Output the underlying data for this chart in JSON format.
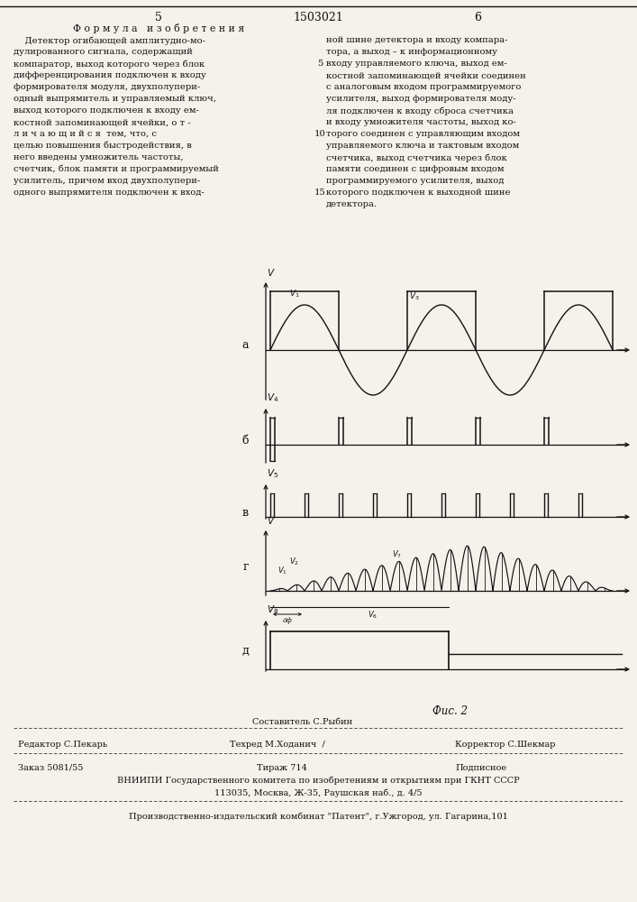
{
  "bg_color": "#f5f2eb",
  "line_color": "#111111",
  "text_color": "#111111",
  "patent_number": "1503021",
  "page_left": "5",
  "page_right": "6",
  "section_title": "Ф о р м у л а   и з о б р е т е н и я",
  "left_lines": [
    "    Детектор огибающей амплитудно-мо-",
    "дулированного сигнала, содержащий",
    "компаратор, выход которого через блок",
    "дифференцирования подключен к входу",
    "формирователя модуля, двухполупери-",
    "одный выпрямитель и управляемый ключ,",
    "выход которого подключен к входу ем-",
    "костной запоминающей ячейки, о т -",
    "л и ч а ю щ и й с я  тем, что, с",
    "целью повышения быстродействия, в",
    "него введены умножитель частоты,",
    "счетчик, блок памяти и программируемый",
    "усилитель, причем вход двухполупери-",
    "одного выпрямителя подключен к вход-"
  ],
  "right_lines": [
    "ной шине детектора и входу компара-",
    "тора, а выход – к информационному",
    "входу управляемого ключа, выход ем-",
    "костной запоминающей ячейки соединен",
    "с аналоговым входом программируемого",
    "усилителя, выход формирователя моду-",
    "ля подключен к входу сброса счетчика",
    "и входу умножителя частоты, выход ко-",
    "торого соединен с управляющим входом",
    "управляемого ключа и тактовым входом",
    "счетчика, выход счетчика через блок",
    "памяти соединен с цифровым входом",
    "программируемого усилителя, выход",
    "которого подключен к выходной шине",
    "детектора."
  ],
  "col_nums": [
    [
      "5",
      2
    ],
    [
      "10",
      8
    ],
    [
      "15",
      13
    ]
  ],
  "fig_label": "Фис. 2",
  "footer": {
    "sostavitel": "Составитель С.Рыбин",
    "redaktor": "Редактор С.Пекарь",
    "tehred": "Техред М.Ходанич  /",
    "korrektor": "Корректор С.Шекмар",
    "zakaz": "Заказ 5081/55",
    "tirazh": "Тираж 714",
    "podpisnoe": "Подписное",
    "vniipи": "ВНИИПИ Государственного комитета по изобретениям и открытиям при ГКНТ СССР",
    "address": "113035, Москва, Ж-35, Раушская наб., д. 4/5",
    "patent_plant": "Производственно-издательский комбинат \"Патент\", г.Ужгород, ул. Гагарина,101"
  }
}
